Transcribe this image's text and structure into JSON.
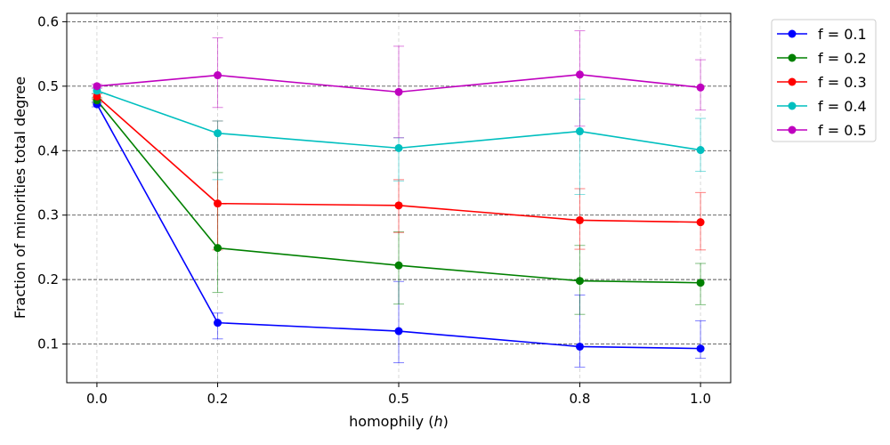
{
  "chart_data": {
    "type": "line",
    "xlabel": "homophily (",
    "xlabel_var": "h",
    "xlabel_suffix": ")",
    "ylabel": "Fraction of minorities total degree",
    "x": [
      0.0,
      0.2,
      0.5,
      0.8,
      1.0
    ],
    "x_tick_labels": [
      "0.0",
      "0.2",
      "0.5",
      "0.8",
      "1.0"
    ],
    "y_ticks": [
      0.1,
      0.2,
      0.3,
      0.4,
      0.5,
      0.6
    ],
    "y_tick_labels": [
      "0.1",
      "0.2",
      "0.3",
      "0.4",
      "0.5",
      "0.6"
    ],
    "ylim": [
      0.04,
      0.613
    ],
    "grid": {
      "y": "dashed",
      "x": "dashed-light"
    },
    "legend_placement": "outside-top-right",
    "series": [
      {
        "name": "f = 0.1",
        "color": "#0000ff",
        "values": [
          0.472,
          0.133,
          0.12,
          0.096,
          0.093
        ],
        "err_low": [
          0.468,
          0.108,
          0.071,
          0.064,
          0.078
        ],
        "err_high": [
          0.476,
          0.148,
          0.197,
          0.176,
          0.136
        ]
      },
      {
        "name": "f = 0.2",
        "color": "#008000",
        "values": [
          0.478,
          0.249,
          0.222,
          0.198,
          0.195
        ],
        "err_low": [
          0.474,
          0.18,
          0.162,
          0.146,
          0.161
        ],
        "err_high": [
          0.482,
          0.366,
          0.274,
          0.253,
          0.225
        ]
      },
      {
        "name": "f = 0.3",
        "color": "#ff0000",
        "values": [
          0.484,
          0.318,
          0.315,
          0.292,
          0.289
        ],
        "err_low": [
          0.48,
          0.246,
          0.273,
          0.247,
          0.246
        ],
        "err_high": [
          0.488,
          0.446,
          0.355,
          0.341,
          0.335
        ]
      },
      {
        "name": "f = 0.4",
        "color": "#00bfbf",
        "values": [
          0.493,
          0.427,
          0.404,
          0.43,
          0.401
        ],
        "err_low": [
          0.489,
          0.355,
          0.353,
          0.332,
          0.368
        ],
        "err_high": [
          0.497,
          0.446,
          0.42,
          0.48,
          0.45
        ]
      },
      {
        "name": "f = 0.5",
        "color": "#bf00bf",
        "values": [
          0.5,
          0.517,
          0.491,
          0.518,
          0.498
        ],
        "err_low": [
          0.497,
          0.467,
          0.42,
          0.438,
          0.463
        ],
        "err_high": [
          0.503,
          0.575,
          0.562,
          0.586,
          0.541
        ]
      }
    ]
  }
}
